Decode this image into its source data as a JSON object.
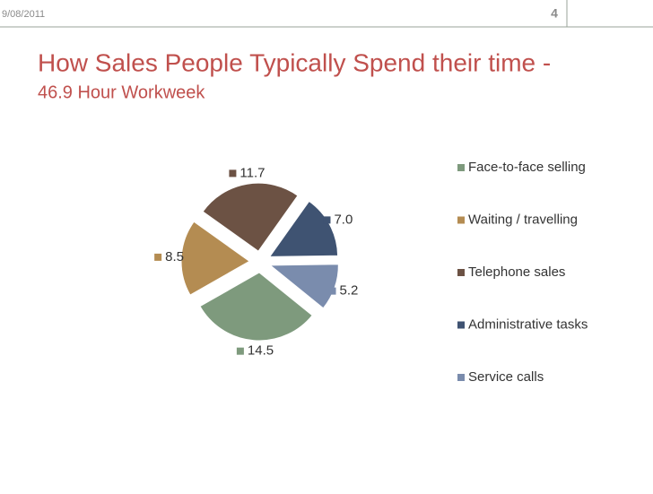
{
  "header": {
    "date": "9/08/2011",
    "page_number": "4"
  },
  "chart_data": {
    "type": "pie",
    "title": "How Sales People Typically Spend their time -",
    "subtitle": "46.9 Hour Workweek",
    "categories": [
      "Face-to-face selling",
      "Waiting / travelling",
      "Telephone sales",
      "Administrative tasks",
      "Service calls"
    ],
    "values": [
      14.5,
      8.5,
      11.7,
      7.0,
      5.2
    ],
    "value_labels": [
      "14.5",
      "8.5",
      "11.7",
      "7.0",
      "5.2"
    ],
    "colors": [
      "#7e9a7d",
      "#b48c52",
      "#6c5244",
      "#3f5372",
      "#7a8cad"
    ],
    "legend": "right"
  }
}
